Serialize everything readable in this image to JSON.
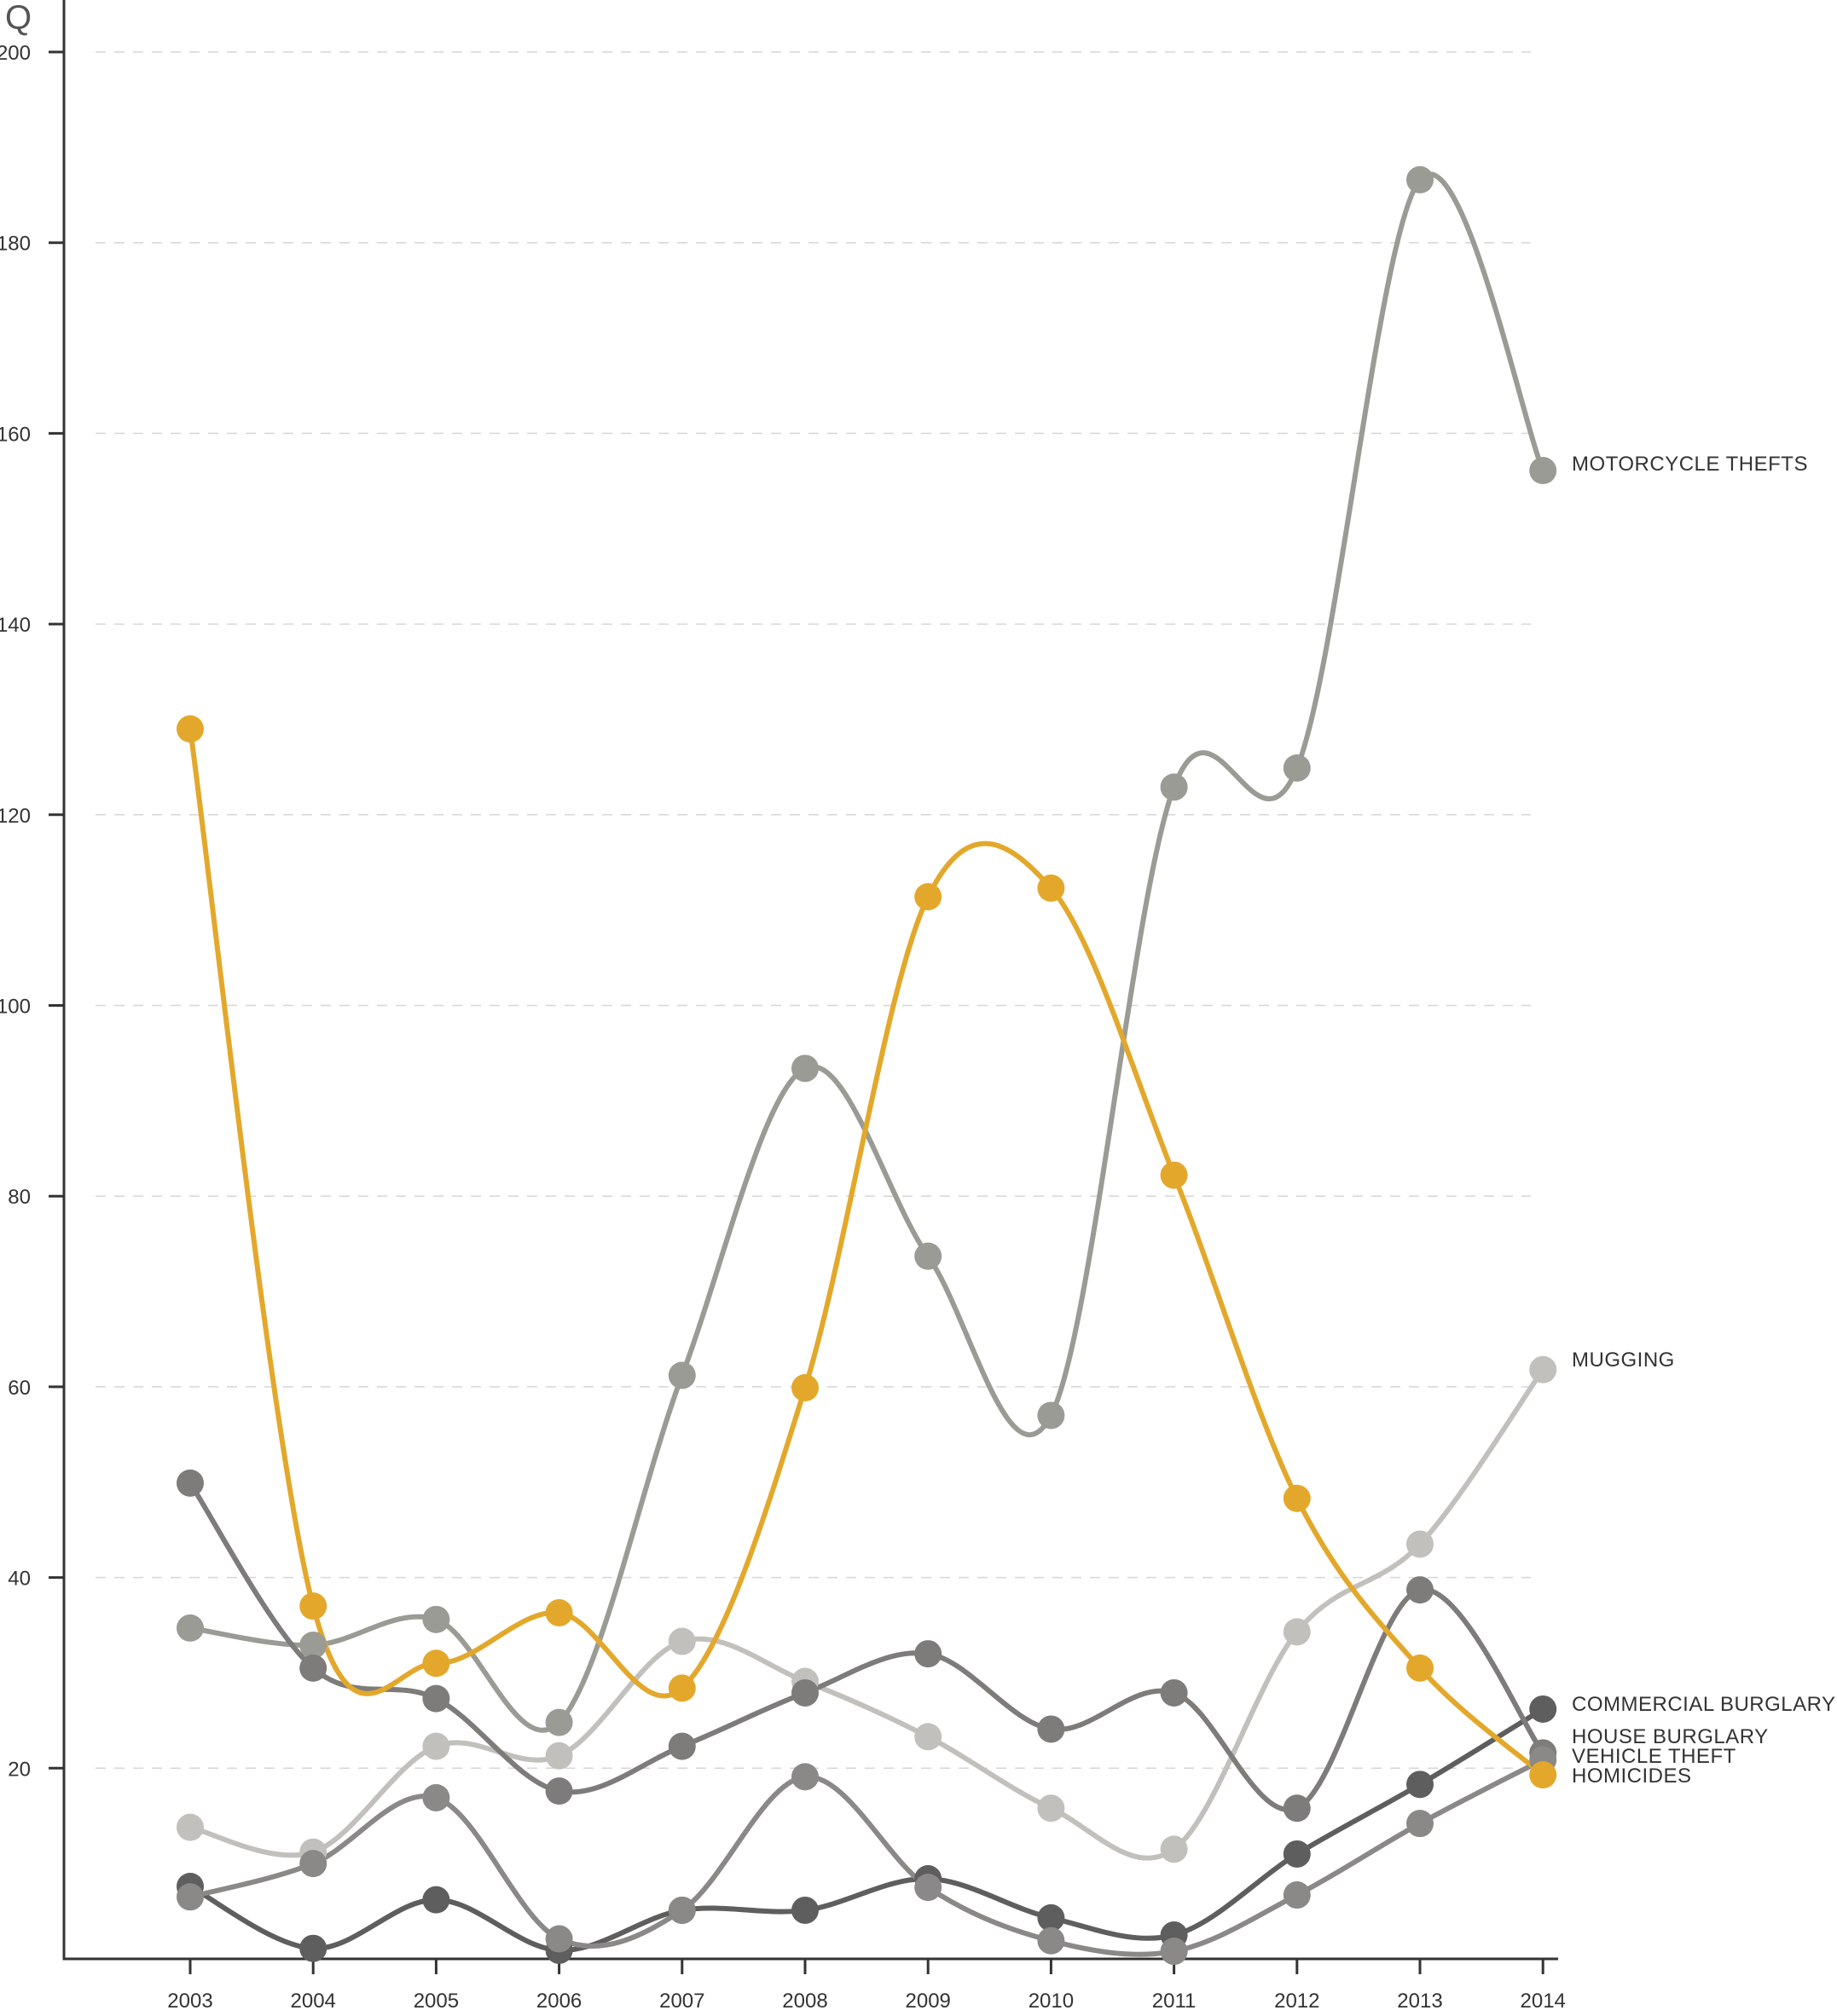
{
  "chart_data": {
    "type": "line",
    "ylabel": "Q",
    "ylim": [
      0,
      200
    ],
    "yticks": [
      20,
      40,
      60,
      80,
      100,
      120,
      140,
      160,
      180,
      200
    ],
    "grid": true,
    "x": [
      "2003",
      "2004",
      "2005",
      "2006",
      "2007",
      "2008",
      "2009",
      "2010",
      "2011",
      "2012",
      "2013",
      "2014"
    ],
    "series": [
      {
        "name": "MOTORCYCLE THEFTS",
        "color": "#9b9b95",
        "values": [
          34.7,
          32.9,
          35.6,
          24.8,
          61.2,
          93.4,
          73.7,
          57.0,
          122.9,
          124.9,
          186.6,
          156.1
        ]
      },
      {
        "name": "MUGGING",
        "color": "#c2c0bd",
        "values": [
          13.8,
          11.2,
          22.3,
          21.3,
          33.3,
          29.1,
          23.3,
          15.8,
          11.5,
          34.3,
          43.5,
          61.8
        ]
      },
      {
        "name": "COMMERCIAL BURGLARY",
        "color": "#5e5e5e",
        "values": [
          7.6,
          1.1,
          6.2,
          0.9,
          5.1,
          5.1,
          8.4,
          4.3,
          2.5,
          11.0,
          18.3,
          26.2
        ]
      },
      {
        "name": "HOUSE BURGLARY",
        "color": "#7d7c7a",
        "values": [
          49.9,
          30.5,
          27.3,
          17.6,
          22.3,
          27.9,
          32.0,
          24.1,
          27.9,
          15.8,
          38.7,
          21.6
        ]
      },
      {
        "name": "VEHICLE THEFT",
        "color": "#8a8987",
        "values": [
          6.5,
          10.0,
          16.9,
          2.1,
          5.1,
          19.1,
          7.5,
          1.9,
          0.8,
          6.7,
          14.2,
          20.9
        ]
      },
      {
        "name": "HOMICIDES",
        "color": "#e3a82b",
        "values": [
          129.0,
          37.0,
          31.0,
          36.3,
          28.4,
          59.9,
          111.4,
          112.3,
          82.2,
          48.3,
          30.5,
          19.3
        ]
      }
    ]
  }
}
